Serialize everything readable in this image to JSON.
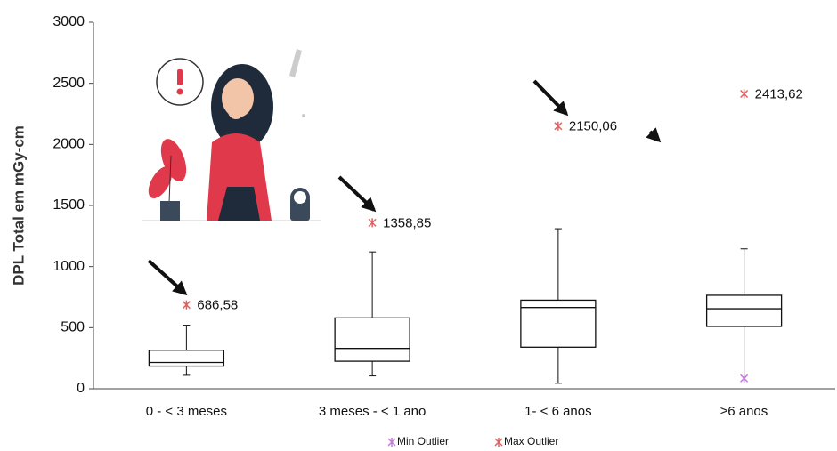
{
  "chart_data": {
    "type": "box",
    "y_label": "DPL Total em mGy-cm",
    "categories": [
      "0 - < 3 meses",
      "3 meses - < 1 ano",
      "1- < 6 anos",
      "≥6 anos"
    ],
    "boxes": [
      {
        "min": 110,
        "q1": 185,
        "median": 215,
        "q3": 315,
        "max": 520
      },
      {
        "min": 105,
        "q1": 225,
        "median": 330,
        "q3": 580,
        "max": 1120
      },
      {
        "min": 45,
        "q1": 340,
        "median": 665,
        "q3": 725,
        "max": 1310
      },
      {
        "min": 120,
        "q1": 510,
        "median": 655,
        "q3": 765,
        "max": 1145
      }
    ],
    "min_outliers": {
      "name": "Min Outlier",
      "color": "#c77ddb",
      "values": [
        null,
        null,
        null,
        85
      ]
    },
    "max_outliers": {
      "name": "Max Outlier",
      "color": "#e06060",
      "values": [
        686.58,
        1358.85,
        2150.06,
        2413.62
      ],
      "value_labels": [
        "686,58",
        "1358,85",
        "2150,06",
        "2413,62"
      ]
    },
    "ylim": [
      0,
      3000
    ],
    "yticks": [
      0,
      500,
      1000,
      1500,
      2000,
      2500,
      3000
    ],
    "grid": false
  }
}
